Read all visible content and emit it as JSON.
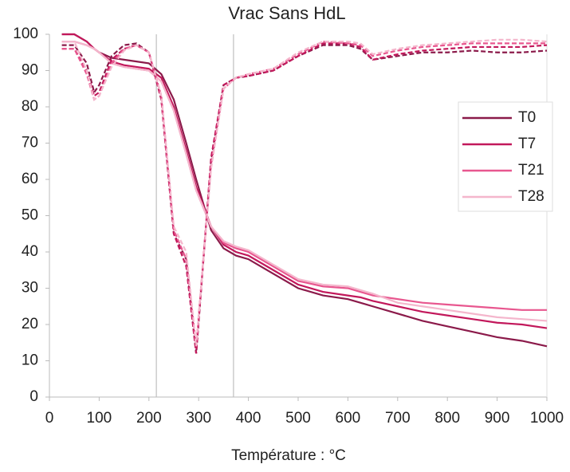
{
  "chart_data": {
    "type": "line",
    "title": "Vrac Sans HdL",
    "x_label": "Température : °C",
    "x": [
      25,
      50,
      75,
      90,
      100,
      125,
      150,
      175,
      200,
      225,
      250,
      275,
      295,
      325,
      350,
      375,
      400,
      450,
      500,
      550,
      600,
      625,
      650,
      700,
      750,
      800,
      850,
      900,
      950,
      1000
    ],
    "series": [
      {
        "name": "T0",
        "color": "#8b1a4a",
        "values": [
          100,
          100,
          98,
          96,
          95,
          93.5,
          93,
          92.5,
          92,
          89,
          82,
          70,
          60,
          46,
          41,
          39,
          38,
          34,
          30,
          28,
          27,
          26,
          25,
          23,
          21,
          19.5,
          18,
          16.5,
          15.5,
          14
        ]
      },
      {
        "name": "T7",
        "color": "#c2185b",
        "values": [
          100,
          100,
          98,
          96,
          95,
          92.5,
          91.5,
          91,
          90.5,
          88,
          80,
          68,
          58,
          47,
          42,
          40,
          39,
          35,
          31,
          29,
          28,
          27.5,
          26.5,
          25,
          23.5,
          22.5,
          21.5,
          20.5,
          20,
          19
        ]
      },
      {
        "name": "T21",
        "color": "#e8578f",
        "values": [
          98,
          98,
          97,
          96,
          95,
          92,
          91,
          90.5,
          90,
          87,
          79,
          67,
          57,
          47,
          42.5,
          41,
          40,
          36,
          32,
          30.5,
          30,
          29,
          28,
          27,
          26,
          25.5,
          25,
          24.5,
          24,
          24
        ]
      },
      {
        "name": "T28",
        "color": "#f4b6cc",
        "values": [
          98,
          98,
          97,
          96,
          95,
          92,
          91,
          90.5,
          90,
          87,
          79,
          67,
          57,
          47,
          43,
          41.5,
          40.5,
          36.5,
          32.5,
          31,
          30.5,
          29.5,
          28.5,
          26,
          25,
          24,
          23,
          22,
          21.5,
          21
        ]
      },
      {
        "color": "#8b1a4a",
        "dashed": true,
        "values": [
          97,
          97,
          92,
          84,
          86,
          94,
          97,
          97.5,
          95,
          82,
          45,
          38,
          12,
          65,
          86,
          88,
          88.5,
          90,
          94,
          97,
          97,
          96,
          93,
          94,
          95,
          95,
          95.5,
          95,
          95,
          95.5
        ]
      },
      {
        "color": "#c2185b",
        "dashed": true,
        "values": [
          96,
          96,
          90,
          83,
          84,
          93,
          96,
          97,
          95,
          82,
          45,
          36,
          12,
          66,
          86,
          88,
          88.5,
          90,
          94,
          97.5,
          97.5,
          96.5,
          93,
          94.5,
          95.5,
          96,
          96.5,
          96.5,
          96.5,
          97
        ]
      },
      {
        "color": "#e8578f",
        "dashed": true,
        "values": [
          96,
          96,
          89,
          82,
          83,
          92,
          96,
          97,
          95,
          83,
          46,
          38,
          14,
          64,
          85,
          88,
          89,
          90.5,
          94.5,
          98,
          97.5,
          97,
          94,
          95.5,
          96.5,
          97,
          97.5,
          97.5,
          97.5,
          97.5
        ]
      },
      {
        "color": "#f4b6cc",
        "dashed": true,
        "values": [
          98,
          98,
          90,
          82,
          83,
          91,
          95.5,
          97,
          95,
          83,
          47,
          40,
          14,
          63,
          85,
          88,
          89,
          90.5,
          95,
          98,
          98,
          97.5,
          94.5,
          96,
          97,
          97.5,
          98,
          98.5,
          98.5,
          98
        ]
      }
    ],
    "vlines": [
      215,
      370
    ],
    "xlim": [
      0,
      1000
    ],
    "xticks": [
      0,
      100,
      200,
      300,
      400,
      500,
      600,
      700,
      800,
      900,
      1000
    ],
    "ylim": [
      0,
      100
    ],
    "yticks": [
      0,
      10,
      20,
      30,
      40,
      50,
      60,
      70,
      80,
      90,
      100
    ],
    "legend": "right"
  }
}
